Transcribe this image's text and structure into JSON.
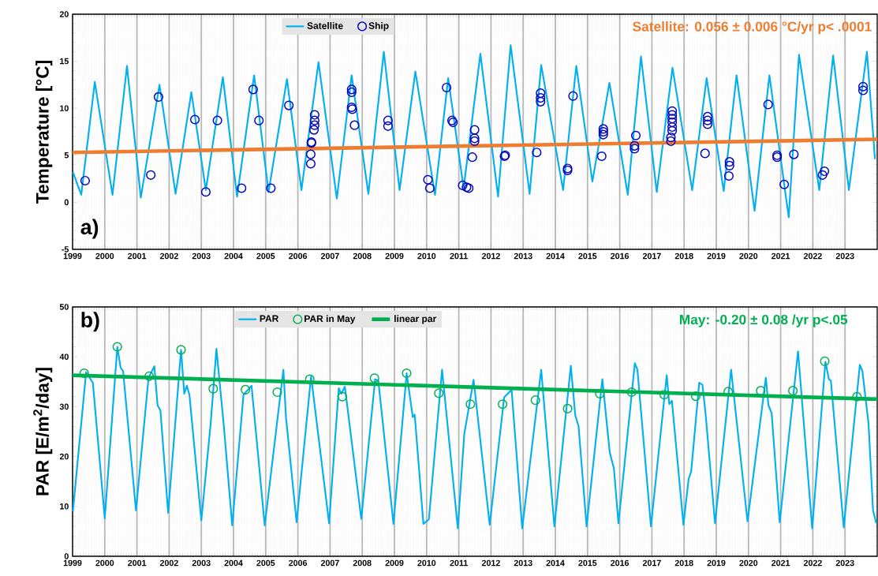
{
  "chart_data": [
    {
      "type": "line",
      "ylabel": "Temperature [°C]",
      "annotations": [
        "a)",
        "Satellite: 0.056 ± 0.006 °C/yr p< .0001"
      ],
      "xlim": [
        1999,
        2024
      ],
      "ylim": [
        -5,
        20
      ],
      "xticks": [
        1999,
        2000,
        2001,
        2002,
        2003,
        2004,
        2005,
        2006,
        2007,
        2008,
        2009,
        2010,
        2011,
        2012,
        2013,
        2014,
        2015,
        2016,
        2017,
        2018,
        2019,
        2020,
        2021,
        2022,
        2023
      ],
      "yticks": [
        -5,
        0,
        5,
        10,
        15,
        20
      ],
      "grid": "x",
      "legend": "top",
      "series": [
        {
          "name": "Satellite",
          "color": "#00b0f0",
          "x": [
            1999.01,
            1999.27,
            1999.69,
            2000.24,
            2000.69,
            2001.12,
            2001.7,
            2002.2,
            2002.69,
            2003.14,
            2003.67,
            2004.11,
            2004.64,
            2005.09,
            2005.66,
            2006.11,
            2006.64,
            2007.21,
            2007.67,
            2008.19,
            2008.67,
            2009.16,
            2009.65,
            2010.26,
            2010.67,
            2011.15,
            2011.67,
            2012.22,
            2012.61,
            2013.2,
            2013.56,
            2014.24,
            2014.65,
            2015.15,
            2015.68,
            2016.25,
            2016.66,
            2017.15,
            2017.64,
            2018.25,
            2018.7,
            2019.23,
            2019.63,
            2020.19,
            2020.65,
            2021.25,
            2021.57,
            2022.2,
            2022.63,
            2023.12,
            2023.68,
            2023.93
          ],
          "values": [
            3.2,
            0.8,
            12.8,
            0.8,
            14.5,
            0.5,
            12.5,
            0.9,
            11.7,
            1.3,
            13.3,
            0.6,
            13.5,
            1.1,
            13.1,
            1.3,
            14.9,
            0.4,
            13.5,
            0.9,
            16.0,
            1.3,
            13.9,
            0.8,
            13.2,
            1.5,
            15.8,
            0.6,
            16.7,
            0.9,
            14.6,
            1.3,
            14.5,
            2.2,
            12.7,
            0.8,
            15.5,
            1.1,
            14.3,
            1.3,
            13.2,
            1.2,
            13.5,
            -0.9,
            13.5,
            -1.6,
            15.7,
            1.3,
            15.6,
            1.3,
            16.0,
            4.6
          ]
        },
        {
          "name": "Ship",
          "type": "scatter",
          "marker": "circle",
          "color": "#0000c0",
          "x": [
            1999.39,
            2001.43,
            2001.67,
            2002.8,
            2003.14,
            2003.5,
            2004.25,
            2004.61,
            2004.79,
            2005.16,
            2005.72,
            2006.4,
            2006.4,
            2006.42,
            2006.42,
            2006.5,
            2006.52,
            2006.52,
            2006.52,
            2007.67,
            2007.67,
            2007.67,
            2007.69,
            2007.76,
            2008.8,
            2008.8,
            2010.04,
            2010.1,
            2010.62,
            2010.79,
            2010.82,
            2011.12,
            2011.24,
            2011.31,
            2011.42,
            2011.49,
            2011.49,
            2011.49,
            2012.42,
            2012.44,
            2013.42,
            2013.54,
            2013.54,
            2013.54,
            2014.38,
            2014.38,
            2014.55,
            2015.44,
            2015.49,
            2015.49,
            2015.49,
            2016.46,
            2016.46,
            2016.5,
            2017.59,
            2017.59,
            2017.63,
            2017.63,
            2017.63,
            2017.63,
            2017.63,
            2017.63,
            2018.65,
            2018.73,
            2018.73,
            2018.73,
            2019.39,
            2019.41,
            2019.41,
            2020.61,
            2020.89,
            2020.89,
            2021.11,
            2021.41,
            2022.3,
            2022.36,
            2023.56,
            2023.56
          ],
          "values": [
            2.3,
            2.9,
            11.2,
            8.8,
            1.1,
            8.7,
            1.5,
            12.0,
            8.7,
            1.5,
            10.3,
            4.1,
            5.1,
            6.3,
            6.4,
            7.7,
            8.2,
            8.7,
            9.3,
            12.0,
            11.7,
            10.1,
            9.9,
            8.2,
            8.7,
            8.1,
            2.4,
            1.5,
            12.2,
            8.7,
            8.5,
            1.8,
            1.6,
            1.5,
            4.8,
            6.5,
            6.8,
            7.7,
            4.9,
            5.0,
            5.3,
            10.7,
            11.1,
            11.6,
            3.4,
            3.6,
            11.3,
            4.9,
            7.2,
            7.5,
            7.8,
            5.7,
            6.0,
            7.1,
            6.5,
            6.9,
            7.6,
            8.0,
            8.5,
            8.9,
            9.3,
            9.7,
            5.2,
            8.3,
            8.7,
            9.1,
            2.8,
            3.9,
            4.3,
            10.4,
            4.8,
            5.0,
            1.9,
            5.1,
            2.9,
            3.3,
            11.9,
            12.3
          ]
        },
        {
          "color": "#ed7d31",
          "x": [
            1999,
            2024
          ],
          "values": [
            5.3,
            6.7
          ]
        }
      ]
    },
    {
      "type": "line",
      "ylabel": "PAR [E/m$^{2}$/day]",
      "annotations": [
        "b)",
        "May: -0.20 ± 0.08 /yr  p<.05"
      ],
      "xlim": [
        1999,
        2024
      ],
      "ylim": [
        0,
        50
      ],
      "xticks": [
        1999,
        2000,
        2001,
        2002,
        2003,
        2004,
        2005,
        2006,
        2007,
        2008,
        2009,
        2010,
        2011,
        2012,
        2013,
        2014,
        2015,
        2016,
        2017,
        2018,
        2019,
        2020,
        2021,
        2022,
        2023
      ],
      "yticks": [
        0,
        10,
        20,
        30,
        40,
        50
      ],
      "grid": "x",
      "legend": "top",
      "series": [
        {
          "name": "PAR",
          "color": "#00b0f0",
          "x": [
            1999.01,
            1999.42,
            1999.63,
            2000.0,
            2000.39,
            2000.49,
            2000.57,
            2000.97,
            2001.36,
            2001.54,
            2001.64,
            2001.73,
            2001.97,
            2002.37,
            2002.47,
            2002.55,
            2002.63,
            2003.0,
            2003.29,
            2003.47,
            2003.7,
            2003.96,
            2004.31,
            2004.56,
            2004.97,
            2005.55,
            2005.63,
            2005.96,
            2006.41,
            2006.97,
            2007.27,
            2007.35,
            2007.46,
            2007.97,
            2008.4,
            2008.5,
            2008.97,
            2009.38,
            2009.57,
            2009.63,
            2009.9,
            2010.07,
            2010.48,
            2010.97,
            2011.17,
            2011.46,
            2011.96,
            2012.41,
            2012.64,
            2012.97,
            2013.56,
            2013.97,
            2014.48,
            2014.62,
            2014.72,
            2014.97,
            2015.46,
            2015.69,
            2015.82,
            2015.96,
            2016.47,
            2016.55,
            2016.97,
            2017.46,
            2017.54,
            2017.62,
            2017.98,
            2018.14,
            2018.22,
            2018.47,
            2018.57,
            2018.67,
            2018.96,
            2019.46,
            2019.97,
            2020.54,
            2020.62,
            2020.72,
            2020.97,
            2021.54,
            2021.98,
            2022.39,
            2022.5,
            2022.56,
            2022.96,
            2023.46,
            2023.54,
            2023.73,
            2023.87,
            2023.97
          ],
          "values": [
            9.0,
            36.9,
            34.8,
            7.6,
            42.0,
            37.9,
            37.1,
            9.2,
            35.8,
            38.1,
            30.3,
            29.2,
            8.7,
            41.4,
            32.6,
            34.2,
            32.4,
            7.2,
            26.6,
            41.6,
            26.1,
            6.2,
            32.4,
            34.2,
            6.2,
            37.4,
            27.9,
            6.8,
            36.1,
            6.6,
            33.7,
            32.6,
            34.0,
            7.5,
            35.5,
            35.2,
            6.5,
            36.7,
            27.9,
            28.4,
            6.5,
            7.4,
            37.4,
            5.6,
            24.5,
            35.4,
            6.3,
            31.9,
            33.4,
            5.6,
            37.4,
            6.0,
            38.2,
            28.2,
            26.1,
            6.0,
            35.5,
            20.8,
            17.6,
            6.6,
            38.7,
            37.4,
            6.0,
            36.3,
            30.5,
            31.2,
            6.3,
            15.5,
            17.0,
            34.8,
            34.4,
            28.4,
            6.6,
            37.4,
            7.0,
            35.8,
            30.3,
            28.7,
            6.8,
            41.1,
            5.6,
            39.0,
            35.5,
            35.2,
            5.8,
            38.4,
            37.1,
            26.6,
            9.2,
            6.6
          ]
        },
        {
          "name": "PAR in May",
          "type": "scatter",
          "marker": "circle",
          "color": "#00b050",
          "x": [
            1999.36,
            2000.39,
            2001.38,
            2002.37,
            2003.37,
            2004.37,
            2005.36,
            2006.37,
            2007.38,
            2008.38,
            2009.38,
            2010.38,
            2011.36,
            2012.36,
            2013.38,
            2014.38,
            2015.38,
            2016.37,
            2017.38,
            2018.36,
            2019.37,
            2020.38,
            2021.38,
            2022.37,
            2023.37
          ],
          "values": [
            36.7,
            42.0,
            36.1,
            41.4,
            33.6,
            33.4,
            32.9,
            35.5,
            32.0,
            35.7,
            36.7,
            32.7,
            30.5,
            30.5,
            31.3,
            29.6,
            32.6,
            32.9,
            32.4,
            32.1,
            33.0,
            33.2,
            33.2,
            39.1,
            32.0
          ]
        },
        {
          "name": "linear par",
          "color": "#00b050",
          "x": [
            1999,
            2024
          ],
          "values": [
            36.3,
            31.5
          ]
        }
      ]
    }
  ]
}
